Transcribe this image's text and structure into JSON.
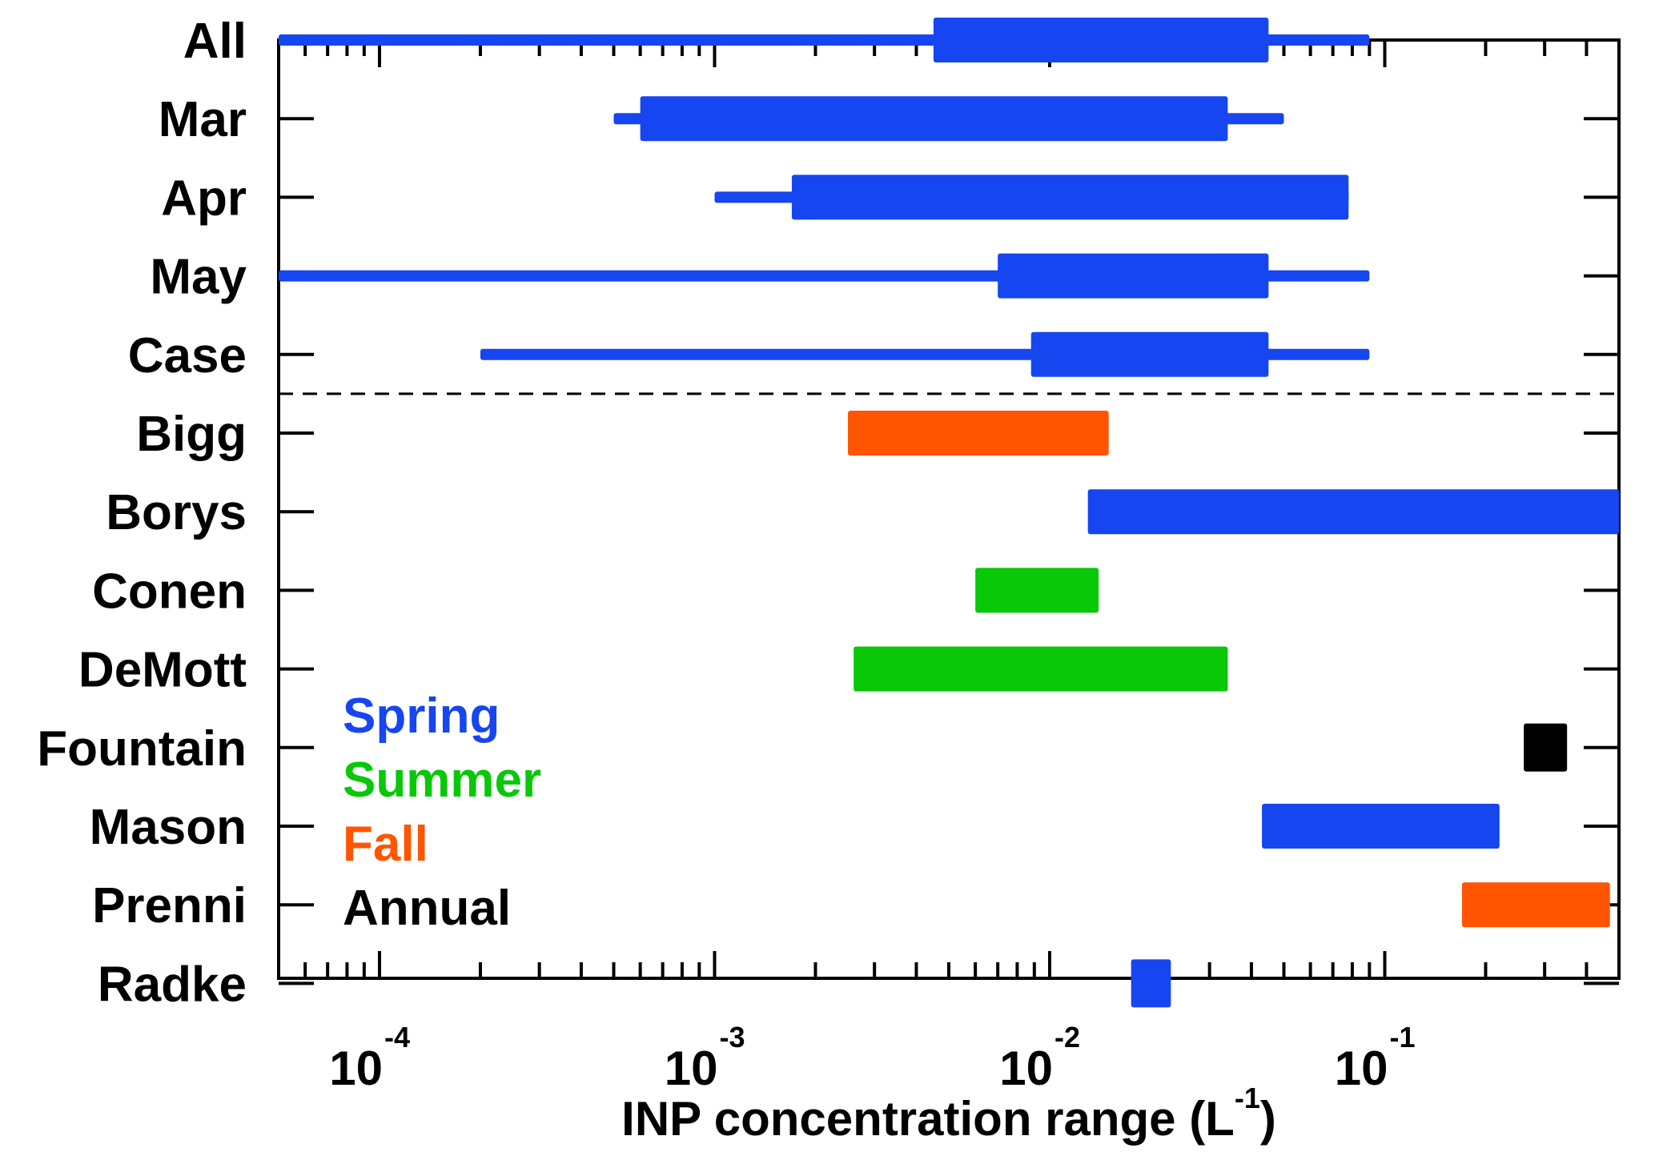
{
  "chart_data": {
    "type": "range-bar",
    "xlabel": {
      "base": "INP concentration range (L",
      "sup": "-1",
      "close": ")"
    },
    "x_scale": "log",
    "xlim": [
      5e-05,
      0.5
    ],
    "x_ticks": [
      {
        "value": 0.0001,
        "base": "10",
        "exp": "-4"
      },
      {
        "value": 0.001,
        "base": "10",
        "exp": "-3"
      },
      {
        "value": 0.01,
        "base": "10",
        "exp": "-2"
      },
      {
        "value": 0.1,
        "base": "10",
        "exp": "-1"
      }
    ],
    "grid": false,
    "legend_position": "bottom-left",
    "legend": [
      {
        "label": "Spring",
        "color": "#1646F0"
      },
      {
        "label": "Summer",
        "color": "#08C808"
      },
      {
        "label": "Fall",
        "color": "#FF5500"
      },
      {
        "label": "Annual",
        "color": "#000000"
      }
    ],
    "separator_after": "Case",
    "rows": [
      {
        "label": "All",
        "season": "Spring",
        "outer": [
          5e-05,
          0.09
        ],
        "inner": [
          0.0045,
          0.045
        ]
      },
      {
        "label": "Mar",
        "season": "Spring",
        "outer": [
          0.0005,
          0.05
        ],
        "inner": [
          0.0006,
          0.034
        ]
      },
      {
        "label": "Apr",
        "season": "Spring",
        "outer": [
          0.001,
          0.078
        ],
        "inner": [
          0.0017,
          0.078
        ]
      },
      {
        "label": "May",
        "season": "Spring",
        "outer": [
          5e-05,
          0.09
        ],
        "inner": [
          0.007,
          0.045
        ]
      },
      {
        "label": "Case",
        "season": "Spring",
        "outer": [
          0.0002,
          0.09
        ],
        "inner": [
          0.0088,
          0.045
        ]
      },
      {
        "label": "Bigg",
        "season": "Fall",
        "inner": [
          0.0025,
          0.015
        ]
      },
      {
        "label": "Borys",
        "season": "Spring",
        "inner": [
          0.013,
          0.5
        ]
      },
      {
        "label": "Conen",
        "season": "Summer",
        "inner": [
          0.006,
          0.014
        ]
      },
      {
        "label": "DeMott",
        "season": "Summer",
        "inner": [
          0.0026,
          0.034
        ]
      },
      {
        "label": "Fountain",
        "season": "Annual",
        "inner": [
          0.26,
          0.35
        ]
      },
      {
        "label": "Mason",
        "season": "Spring",
        "inner": [
          0.043,
          0.22
        ]
      },
      {
        "label": "Prenni",
        "season": "Fall",
        "inner": [
          0.17,
          0.47
        ]
      },
      {
        "label": "Radke",
        "season": "Spring",
        "inner": [
          0.0175,
          0.023
        ]
      }
    ]
  }
}
